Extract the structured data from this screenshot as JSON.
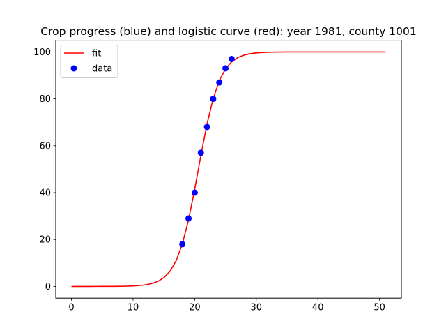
{
  "chart_data": {
    "type": "line",
    "title": "Crop progress (blue) and logistic curve (red): year 1981, county 1001",
    "xlabel": "",
    "ylabel": "",
    "xlim": [
      -2.55,
      53.55
    ],
    "ylim": [
      -5,
      105
    ],
    "x_ticks": [
      0,
      10,
      20,
      30,
      40,
      50
    ],
    "y_ticks": [
      0,
      20,
      40,
      60,
      80,
      100
    ],
    "grid": false,
    "legend_position": "top-left",
    "series": [
      {
        "name": "fit",
        "kind": "line",
        "color": "#ff0000",
        "logistic": {
          "L": 100,
          "k": 0.58,
          "x0": 20.6,
          "x_start": 0,
          "x_end": 51
        }
      },
      {
        "name": "data",
        "kind": "scatter",
        "color": "#0000ff",
        "x": [
          18,
          19,
          20,
          21,
          22,
          23,
          24,
          25,
          26
        ],
        "y": [
          18,
          29,
          40,
          57,
          68,
          80,
          87,
          93,
          97
        ]
      }
    ]
  }
}
